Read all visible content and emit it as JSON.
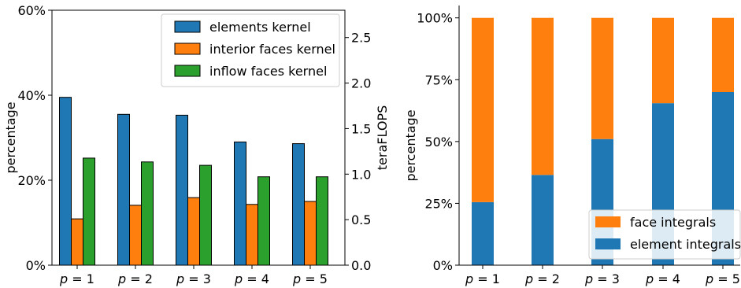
{
  "chart_data": [
    {
      "type": "bar",
      "categories": [
        "p = 1",
        "p = 2",
        "p = 3",
        "p = 4",
        "p = 5"
      ],
      "series": [
        {
          "name": "elements kernel",
          "values": [
            39.5,
            35.5,
            35.3,
            29.0,
            28.6
          ],
          "color": "#1f77b4"
        },
        {
          "name": "interior faces kernel",
          "values": [
            10.9,
            14.1,
            15.9,
            14.3,
            15.0
          ],
          "color": "#ff7f0e"
        },
        {
          "name": "inflow faces kernel",
          "values": [
            25.2,
            24.3,
            23.5,
            20.8,
            20.8
          ],
          "color": "#2ca02c"
        }
      ],
      "ylabel": "percentage",
      "ylim": [
        0,
        60
      ],
      "yticks": [
        "0%",
        "20%",
        "40%",
        "60%"
      ],
      "y2label": "teraFLOPS",
      "y2lim": [
        0,
        2.8
      ],
      "y2ticks": [
        "0.0",
        "0.5",
        "1.0",
        "1.5",
        "2.0",
        "2.5"
      ],
      "legend": "top-right",
      "grid": false
    },
    {
      "type": "bar",
      "stacked": true,
      "categories": [
        "p = 1",
        "p = 2",
        "p = 3",
        "p = 4",
        "p = 5"
      ],
      "series": [
        {
          "name": "element integrals",
          "values": [
            25.5,
            36.5,
            51.0,
            65.5,
            70.0
          ],
          "color": "#1f77b4"
        },
        {
          "name": "face integrals",
          "values": [
            74.5,
            63.5,
            49.0,
            34.5,
            30.0
          ],
          "color": "#ff7f0e"
        }
      ],
      "ylabel": "percentage",
      "ylim": [
        0,
        105
      ],
      "yticks": [
        "0%",
        "25%",
        "50%",
        "75%",
        "100%"
      ],
      "legend": "bottom-right",
      "grid": false
    }
  ]
}
